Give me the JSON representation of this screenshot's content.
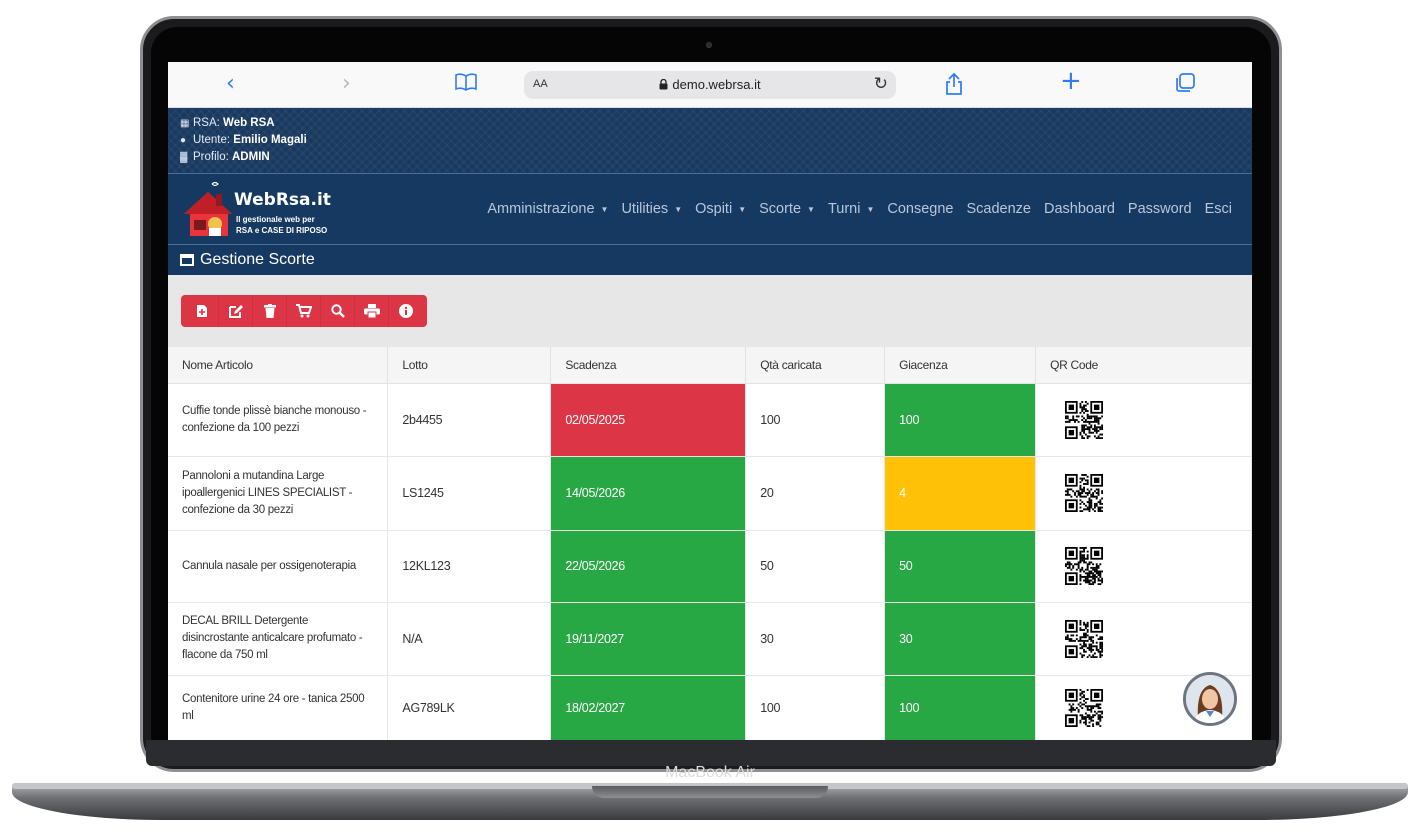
{
  "device": {
    "label": "MacBook Air"
  },
  "browser": {
    "back_icon": "chevron-left-icon",
    "forward_icon": "chevron-right-icon",
    "bookmarks_icon": "book-icon",
    "aa": "AA",
    "url": "demo.webrsa.it",
    "reload_icon": "reload-icon",
    "share_icon": "share-icon",
    "new_tab_icon": "plus-icon",
    "tabs_icon": "tabs-icon"
  },
  "info": {
    "rsa_label": "RSA:",
    "rsa_value": "Web RSA",
    "user_label": "Utente:",
    "user_value": "Emilio Magali",
    "profile_label": "Profilo:",
    "profile_value": "ADMIN"
  },
  "brand": {
    "name": "WebRsa.it",
    "tagline_1": "Il gestionale web per",
    "tagline_2": "RSA e CASE DI RIPOSO"
  },
  "menu": [
    {
      "label": "Amministrazione",
      "dropdown": true
    },
    {
      "label": "Utilities",
      "dropdown": true
    },
    {
      "label": "Ospiti",
      "dropdown": true
    },
    {
      "label": "Scorte",
      "dropdown": true
    },
    {
      "label": "Turni",
      "dropdown": true
    },
    {
      "label": "Consegne",
      "dropdown": false
    },
    {
      "label": "Scadenze",
      "dropdown": false
    },
    {
      "label": "Dashboard",
      "dropdown": false
    },
    {
      "label": "Password",
      "dropdown": false
    },
    {
      "label": "Esci",
      "dropdown": false
    }
  ],
  "section": {
    "title": "Gestione Scorte"
  },
  "toolbar": {
    "accent": "#dc3545",
    "buttons": [
      "new-file-icon",
      "edit-icon",
      "trash-icon",
      "cart-icon",
      "search-icon",
      "print-icon",
      "info-icon"
    ]
  },
  "table": {
    "headers": [
      "Nome Articolo",
      "Lotto",
      "Scadenza",
      "Qtà caricata",
      "Giacenza",
      "QR Code"
    ],
    "rows": [
      {
        "name": "Cuffie tonde plissè bianche monouso - confezione da 100 pezzi",
        "lotto": "2b4455",
        "scadenza": "02/05/2025",
        "scadenza_status": "red",
        "qta": "100",
        "giacenza": "100",
        "giacenza_status": "green"
      },
      {
        "name": "Pannoloni a mutandina Large ipoallergenici LINES SPECIALIST - confezione da 30 pezzi",
        "lotto": "LS1245",
        "scadenza": "14/05/2026",
        "scadenza_status": "green",
        "qta": "20",
        "giacenza": "4",
        "giacenza_status": "yellow"
      },
      {
        "name": "Cannula nasale per ossigenoterapia",
        "lotto": "12KL123",
        "scadenza": "22/05/2026",
        "scadenza_status": "green",
        "qta": "50",
        "giacenza": "50",
        "giacenza_status": "green"
      },
      {
        "name": "DECAL BRILL Detergente disincrostante anticalcare profumato - flacone da 750 ml",
        "lotto": "N/A",
        "scadenza": "19/11/2027",
        "scadenza_status": "green",
        "qta": "30",
        "giacenza": "30",
        "giacenza_status": "green"
      },
      {
        "name": "Contenitore urine 24 ore - tanica 2500 ml",
        "lotto": "AG789LK",
        "scadenza": "18/02/2027",
        "scadenza_status": "green",
        "qta": "100",
        "giacenza": "100",
        "giacenza_status": "green"
      }
    ]
  },
  "colors": {
    "navy": "#163961",
    "red": "#dc3545",
    "green": "#28a745",
    "yellow": "#ffc107"
  }
}
